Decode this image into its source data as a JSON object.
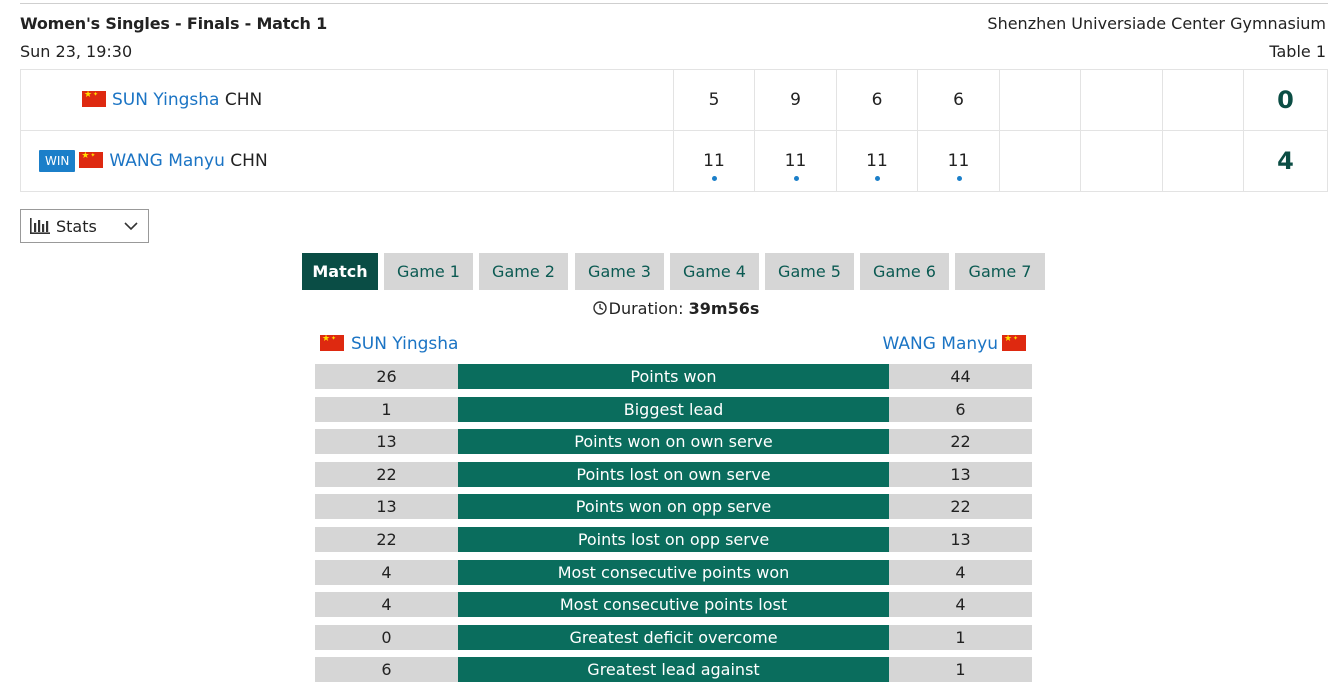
{
  "header": {
    "title": "Women's Singles - Finals - Match 1",
    "venue": "Shenzhen Universiade Center Gymnasium",
    "datetime": "Sun 23, 19:30",
    "table": "Table 1"
  },
  "match": {
    "players": [
      {
        "name": "SUN Yingsha",
        "country": "CHN",
        "win": false,
        "scores": [
          "5",
          "9",
          "6",
          "6",
          "",
          "",
          ""
        ],
        "total": "0",
        "game_wins": [
          false,
          false,
          false,
          false
        ]
      },
      {
        "name": "WANG Manyu",
        "country": "CHN",
        "win": true,
        "win_label": "WIN",
        "scores": [
          "11",
          "11",
          "11",
          "11",
          "",
          "",
          ""
        ],
        "total": "4",
        "game_wins": [
          true,
          true,
          true,
          true
        ]
      }
    ]
  },
  "stats_dropdown": {
    "label": "Stats",
    "icon": "bar-chart-icon"
  },
  "tabs": [
    "Match",
    "Game 1",
    "Game 2",
    "Game 3",
    "Game 4",
    "Game 5",
    "Game 6",
    "Game 7"
  ],
  "active_tab": "Match",
  "duration": {
    "label": "Duration:",
    "value": "39m56s"
  },
  "comparison": {
    "left_player": "SUN Yingsha",
    "right_player": "WANG Manyu",
    "rows": [
      {
        "label": "Points won",
        "left": "26",
        "right": "44"
      },
      {
        "label": "Biggest lead",
        "left": "1",
        "right": "6"
      },
      {
        "label": "Points won on own serve",
        "left": "13",
        "right": "22"
      },
      {
        "label": "Points lost on own serve",
        "left": "22",
        "right": "13"
      },
      {
        "label": "Points won on opp serve",
        "left": "13",
        "right": "22"
      },
      {
        "label": "Points lost on opp serve",
        "left": "22",
        "right": "13"
      },
      {
        "label": "Most consecutive points won",
        "left": "4",
        "right": "4"
      },
      {
        "label": "Most consecutive points lost",
        "left": "4",
        "right": "4"
      },
      {
        "label": "Greatest deficit overcome",
        "left": "0",
        "right": "1"
      },
      {
        "label": "Greatest lead against",
        "left": "6",
        "right": "1"
      }
    ]
  },
  "colors": {
    "accent_dark": "#0a4d45",
    "stat_bar": "#0a6d5d",
    "link": "#1b74c4",
    "win_badge": "#1b7fc9",
    "tab_bg": "#d6d6d6"
  }
}
